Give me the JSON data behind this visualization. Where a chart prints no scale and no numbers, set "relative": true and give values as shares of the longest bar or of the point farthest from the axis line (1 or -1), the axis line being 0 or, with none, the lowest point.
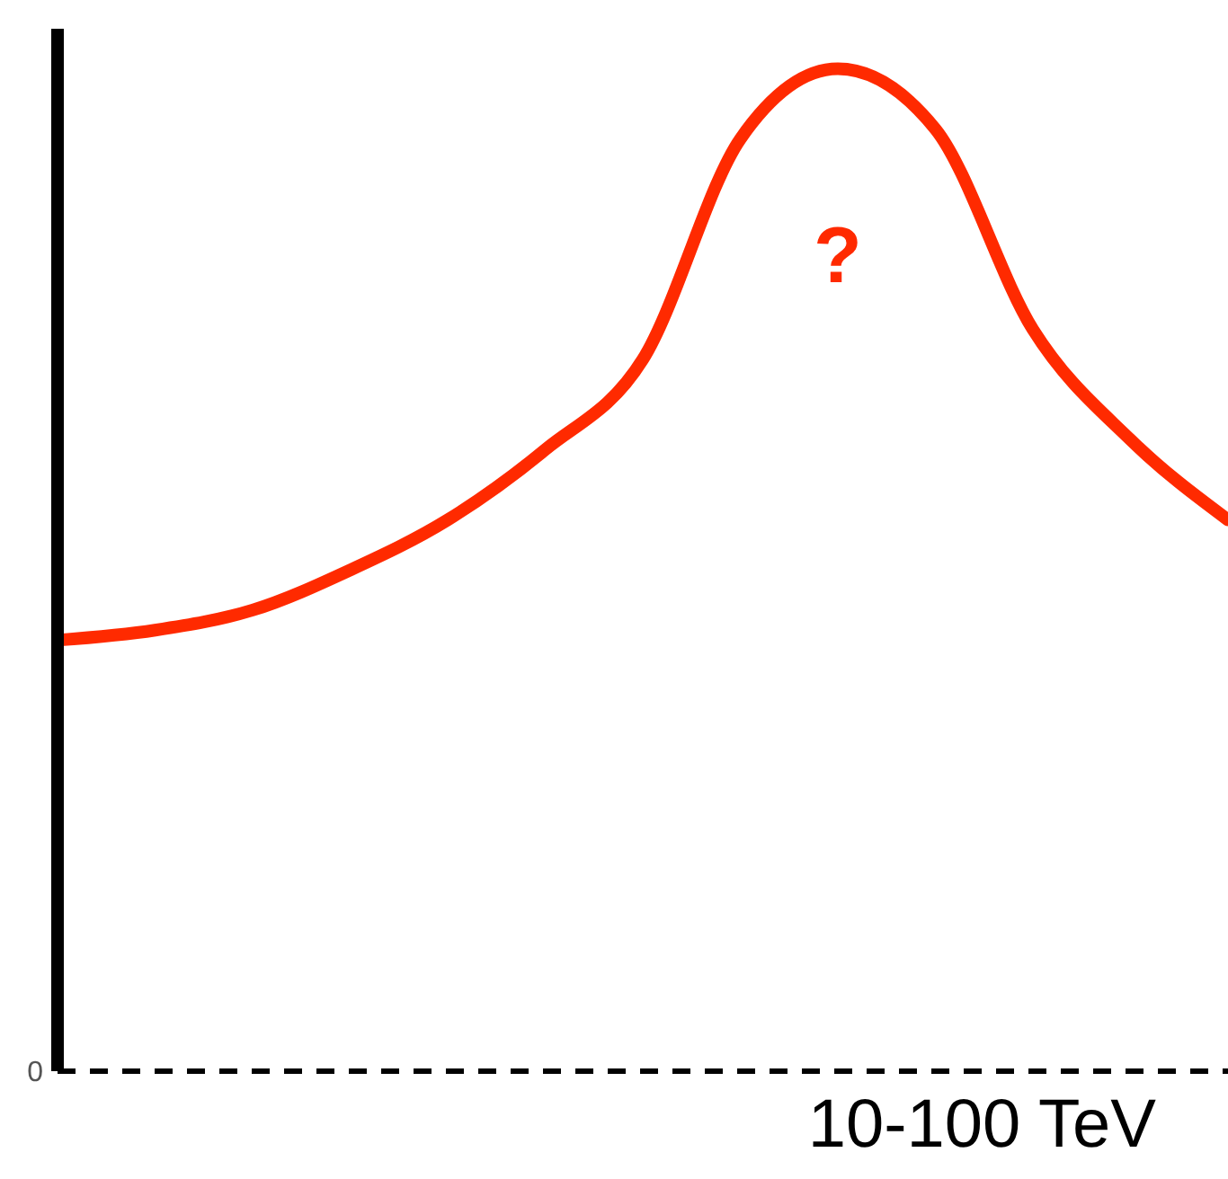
{
  "chart_data": {
    "type": "line",
    "relative": true,
    "categories": [
      null,
      null,
      null,
      null,
      null,
      null,
      null,
      null,
      null,
      null,
      null,
      null,
      null
    ],
    "series": [
      {
        "color": "#ff2a00",
        "values": [
          0.43,
          0.44,
          0.46,
          0.5,
          0.55,
          0.62,
          0.71,
          0.93,
          1,
          0.94,
          0.74,
          0.63,
          0.55
        ]
      }
    ],
    "marker": "none",
    "line_style": "solid",
    "grid": false,
    "ref_lines": [
      {
        "axis": "y",
        "value": 0,
        "label": "0",
        "color": "#000000",
        "line_style": "dashed"
      }
    ],
    "annotations": [
      "?",
      "10-100 TeV"
    ]
  }
}
